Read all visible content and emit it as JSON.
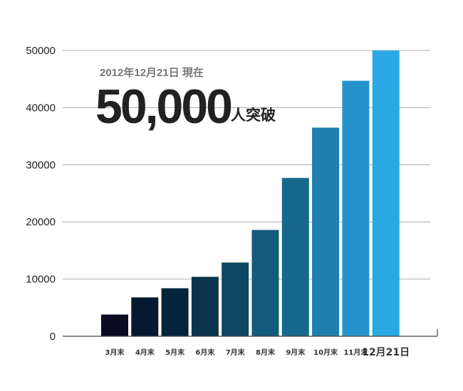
{
  "chart_data": {
    "type": "bar",
    "categories": [
      "3月末",
      "4月末",
      "5月末",
      "6月末",
      "7月末",
      "8月末",
      "9月末",
      "10月末",
      "11月末",
      "12月21日"
    ],
    "values": [
      3800,
      6800,
      8400,
      10400,
      12900,
      18600,
      27700,
      36500,
      44700,
      50000
    ],
    "colors": [
      "#0b0b22",
      "#051a30",
      "#04243b",
      "#0a344d",
      "#0e4863",
      "#135b7a",
      "#17688c",
      "#1f7fae",
      "#2493cc",
      "#2aa8e3"
    ],
    "ylim": [
      0,
      50000
    ],
    "yticks": [
      0,
      10000,
      20000,
      30000,
      40000,
      50000
    ],
    "title": "",
    "xlabel": "",
    "ylabel": "",
    "grid": true,
    "annotation": {
      "date": "2012年12月21日 現在",
      "big_number": "50,000",
      "suffix": "人突破"
    }
  }
}
